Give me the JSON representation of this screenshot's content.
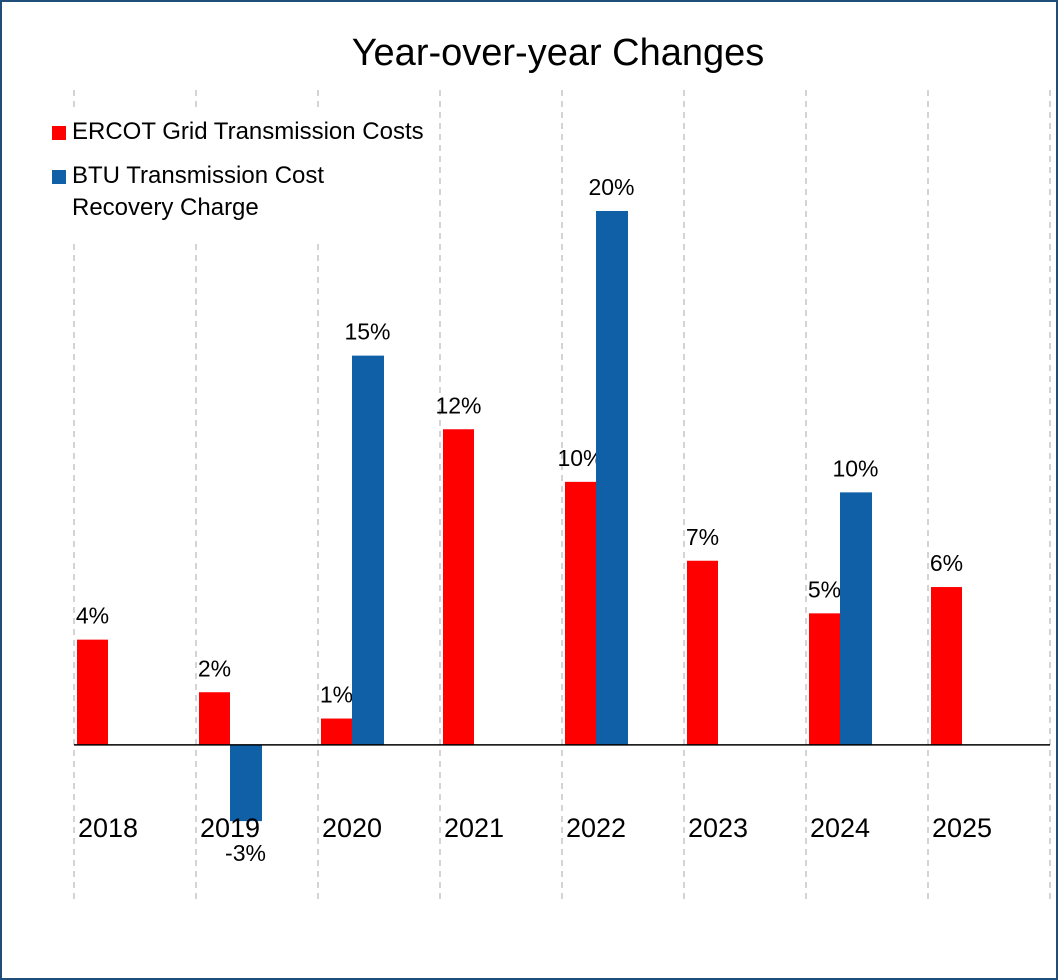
{
  "chart_data": {
    "type": "bar",
    "title": "Year-over-year Changes",
    "categories": [
      "2018",
      "2019",
      "2020",
      "2021",
      "2022",
      "2023",
      "2024",
      "2025"
    ],
    "series": [
      {
        "name": "ERCOT Grid Transmission Costs",
        "color": "#ff0000",
        "values": [
          4.0,
          2.0,
          1.0,
          12.0,
          10.0,
          7.0,
          5.0,
          6.0
        ],
        "value_labels": [
          "4%",
          "2%",
          "1%",
          "12%",
          "10%",
          "7%",
          "5%",
          "6%"
        ]
      },
      {
        "name": "BTU Transmission Cost Recovery Charge",
        "color": "#1060a8",
        "values": [
          null,
          -2.9,
          14.8,
          null,
          20.3,
          null,
          9.6,
          null
        ],
        "value_labels": [
          null,
          "-3%",
          "15%",
          null,
          "20%",
          null,
          "10%",
          null
        ]
      }
    ],
    "ylim": [
      -5.9,
      24.9
    ],
    "legend": "top-left"
  }
}
